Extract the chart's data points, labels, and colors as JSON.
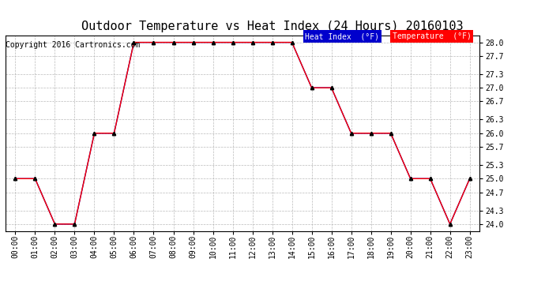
{
  "title": "Outdoor Temperature vs Heat Index (24 Hours) 20160103",
  "copyright": "Copyright 2016 Cartronics.com",
  "x_labels": [
    "00:00",
    "01:00",
    "02:00",
    "03:00",
    "04:00",
    "05:00",
    "06:00",
    "07:00",
    "08:00",
    "09:00",
    "10:00",
    "11:00",
    "12:00",
    "13:00",
    "14:00",
    "15:00",
    "16:00",
    "17:00",
    "18:00",
    "19:00",
    "20:00",
    "21:00",
    "22:00",
    "23:00"
  ],
  "y_ticks": [
    24.0,
    24.3,
    24.7,
    25.0,
    25.3,
    25.7,
    26.0,
    26.3,
    26.7,
    27.0,
    27.3,
    27.7,
    28.0
  ],
  "ylim": [
    23.85,
    28.15
  ],
  "temperature": [
    25.0,
    25.0,
    24.0,
    24.0,
    26.0,
    26.0,
    28.0,
    28.0,
    28.0,
    28.0,
    28.0,
    28.0,
    28.0,
    28.0,
    28.0,
    27.0,
    27.0,
    26.0,
    26.0,
    26.0,
    25.0,
    25.0,
    24.0,
    25.0
  ],
  "heat_index": [
    25.0,
    25.0,
    24.0,
    24.0,
    26.0,
    26.0,
    28.0,
    28.0,
    28.0,
    28.0,
    28.0,
    28.0,
    28.0,
    28.0,
    28.0,
    27.0,
    27.0,
    26.0,
    26.0,
    26.0,
    25.0,
    25.0,
    24.0,
    25.0
  ],
  "temp_color": "#ff0000",
  "heat_index_color": "#0000cc",
  "bg_color": "#ffffff",
  "plot_bg_color": "#ffffff",
  "grid_color": "#aaaaaa",
  "legend_heat_bg": "#0000cc",
  "legend_temp_bg": "#ff0000",
  "legend_text_color": "#ffffff",
  "title_fontsize": 11,
  "copyright_fontsize": 7,
  "tick_fontsize": 7,
  "marker": "^",
  "marker_color": "#000000",
  "marker_size": 3
}
